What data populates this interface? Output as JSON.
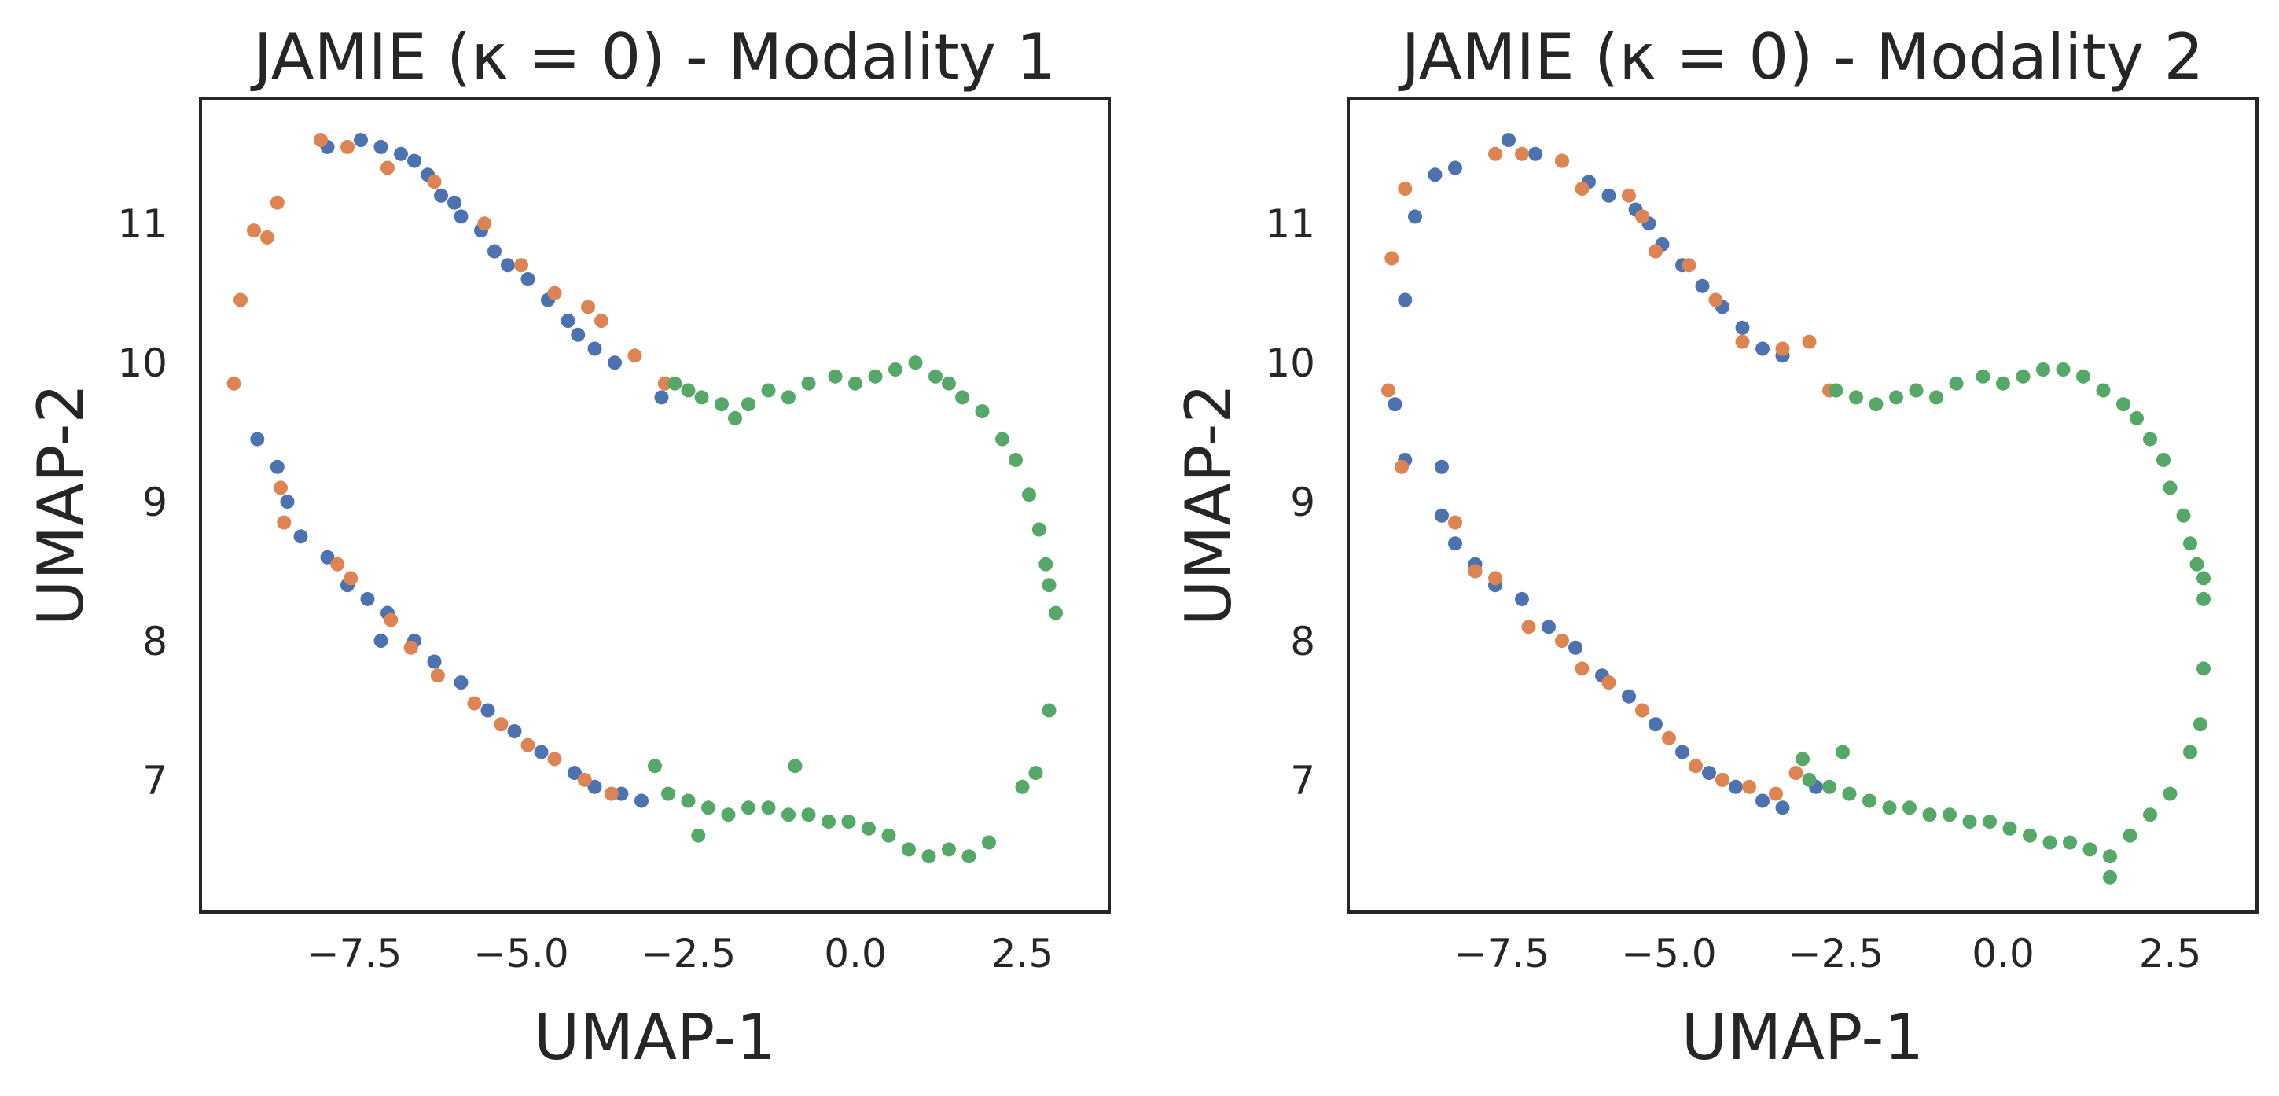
{
  "chart_data": [
    {
      "type": "scatter",
      "title": "JAMIE (κ = 0) - Modality 1",
      "xlabel": "UMAP-1",
      "ylabel": "UMAP-2",
      "xlim": [
        -9.8,
        3.8
      ],
      "ylim": [
        6.05,
        11.9
      ],
      "xticks": [
        -7.5,
        -5.0,
        -2.5,
        0.0,
        2.5
      ],
      "xtick_labels": [
        "−7.5",
        "−5.0",
        "−2.5",
        "0.0",
        "2.5"
      ],
      "yticks": [
        7,
        8,
        9,
        10,
        11
      ],
      "ytick_labels": [
        "7",
        "8",
        "9",
        "10",
        "11"
      ],
      "grid": false,
      "series": [
        {
          "color": "#4c72b0",
          "points": [
            [
              -7.9,
              11.55
            ],
            [
              -7.4,
              11.6
            ],
            [
              -7.1,
              11.55
            ],
            [
              -6.8,
              11.5
            ],
            [
              -6.6,
              11.45
            ],
            [
              -6.4,
              11.35
            ],
            [
              -6.2,
              11.2
            ],
            [
              -6.0,
              11.15
            ],
            [
              -5.9,
              11.05
            ],
            [
              -5.6,
              10.95
            ],
            [
              -5.4,
              10.8
            ],
            [
              -5.2,
              10.7
            ],
            [
              -4.9,
              10.6
            ],
            [
              -4.6,
              10.45
            ],
            [
              -4.3,
              10.3
            ],
            [
              -4.15,
              10.2
            ],
            [
              -3.9,
              10.1
            ],
            [
              -3.6,
              10.0
            ],
            [
              -2.9,
              9.75
            ],
            [
              -8.95,
              9.45
            ],
            [
              -8.65,
              9.25
            ],
            [
              -8.5,
              9.0
            ],
            [
              -8.3,
              8.75
            ],
            [
              -7.9,
              8.6
            ],
            [
              -7.6,
              8.4
            ],
            [
              -7.3,
              8.3
            ],
            [
              -7.0,
              8.2
            ],
            [
              -6.6,
              8.0
            ],
            [
              -6.3,
              7.85
            ],
            [
              -5.9,
              7.7
            ],
            [
              -5.5,
              7.5
            ],
            [
              -5.1,
              7.35
            ],
            [
              -4.7,
              7.2
            ],
            [
              -4.2,
              7.05
            ],
            [
              -3.9,
              6.95
            ],
            [
              -3.5,
              6.9
            ],
            [
              -3.2,
              6.85
            ],
            [
              -7.1,
              8.0
            ]
          ]
        },
        {
          "color": "#dd8452",
          "points": [
            [
              -9.3,
              9.85
            ],
            [
              -9.2,
              10.45
            ],
            [
              -9.0,
              10.95
            ],
            [
              -8.8,
              10.9
            ],
            [
              -8.65,
              11.15
            ],
            [
              -8.0,
              11.6
            ],
            [
              -7.6,
              11.55
            ],
            [
              -7.0,
              11.4
            ],
            [
              -6.3,
              11.3
            ],
            [
              -5.55,
              11.0
            ],
            [
              -5.0,
              10.7
            ],
            [
              -4.5,
              10.5
            ],
            [
              -4.0,
              10.4
            ],
            [
              -3.8,
              10.3
            ],
            [
              -3.3,
              10.05
            ],
            [
              -2.85,
              9.85
            ],
            [
              -8.6,
              9.1
            ],
            [
              -8.55,
              8.85
            ],
            [
              -7.75,
              8.55
            ],
            [
              -7.55,
              8.45
            ],
            [
              -6.95,
              8.15
            ],
            [
              -6.65,
              7.95
            ],
            [
              -6.25,
              7.75
            ],
            [
              -5.7,
              7.55
            ],
            [
              -5.3,
              7.4
            ],
            [
              -4.9,
              7.25
            ],
            [
              -4.5,
              7.15
            ],
            [
              -4.05,
              7.0
            ],
            [
              -3.65,
              6.9
            ]
          ]
        },
        {
          "color": "#55a868",
          "points": [
            [
              -2.7,
              9.85
            ],
            [
              -2.5,
              9.8
            ],
            [
              -2.3,
              9.75
            ],
            [
              -2.0,
              9.7
            ],
            [
              -1.8,
              9.6
            ],
            [
              -1.6,
              9.7
            ],
            [
              -1.3,
              9.8
            ],
            [
              -1.0,
              9.75
            ],
            [
              -0.7,
              9.85
            ],
            [
              -0.3,
              9.9
            ],
            [
              0.0,
              9.85
            ],
            [
              0.3,
              9.9
            ],
            [
              0.6,
              9.95
            ],
            [
              0.9,
              10.0
            ],
            [
              1.2,
              9.9
            ],
            [
              1.4,
              9.85
            ],
            [
              1.6,
              9.75
            ],
            [
              1.9,
              9.65
            ],
            [
              2.2,
              9.45
            ],
            [
              2.4,
              9.3
            ],
            [
              2.6,
              9.05
            ],
            [
              2.75,
              8.8
            ],
            [
              2.85,
              8.55
            ],
            [
              2.9,
              8.4
            ],
            [
              3.0,
              8.2
            ],
            [
              2.9,
              7.5
            ],
            [
              2.7,
              7.05
            ],
            [
              2.5,
              6.95
            ],
            [
              2.0,
              6.55
            ],
            [
              1.7,
              6.45
            ],
            [
              1.4,
              6.5
            ],
            [
              1.1,
              6.45
            ],
            [
              0.8,
              6.5
            ],
            [
              0.5,
              6.6
            ],
            [
              0.2,
              6.65
            ],
            [
              -0.1,
              6.7
            ],
            [
              -0.4,
              6.7
            ],
            [
              -0.7,
              6.75
            ],
            [
              -1.0,
              6.75
            ],
            [
              -1.3,
              6.8
            ],
            [
              -1.6,
              6.8
            ],
            [
              -1.9,
              6.75
            ],
            [
              -2.2,
              6.8
            ],
            [
              -2.5,
              6.85
            ],
            [
              -2.8,
              6.9
            ],
            [
              -3.0,
              7.1
            ],
            [
              -2.35,
              6.6
            ],
            [
              -0.9,
              7.1
            ]
          ]
        }
      ]
    },
    {
      "type": "scatter",
      "title": "JAMIE (κ = 0) - Modality 2",
      "xlabel": "UMAP-1",
      "ylabel": "UMAP-2",
      "xlim": [
        -9.8,
        3.8
      ],
      "ylim": [
        6.05,
        11.9
      ],
      "xticks": [
        -7.5,
        -5.0,
        -2.5,
        0.0,
        2.5
      ],
      "xtick_labels": [
        "−7.5",
        "−5.0",
        "−2.5",
        "0.0",
        "2.5"
      ],
      "yticks": [
        7,
        8,
        9,
        10,
        11
      ],
      "ytick_labels": [
        "7",
        "8",
        "9",
        "10",
        "11"
      ],
      "grid": false,
      "series": [
        {
          "color": "#4c72b0",
          "points": [
            [
              -8.5,
              11.35
            ],
            [
              -8.2,
              11.4
            ],
            [
              -7.4,
              11.6
            ],
            [
              -7.0,
              11.5
            ],
            [
              -6.6,
              11.45
            ],
            [
              -6.2,
              11.3
            ],
            [
              -5.9,
              11.2
            ],
            [
              -5.5,
              11.1
            ],
            [
              -5.3,
              11.0
            ],
            [
              -5.1,
              10.85
            ],
            [
              -4.8,
              10.7
            ],
            [
              -4.5,
              10.55
            ],
            [
              -4.2,
              10.4
            ],
            [
              -3.9,
              10.25
            ],
            [
              -3.6,
              10.1
            ],
            [
              -3.3,
              10.05
            ],
            [
              -9.1,
              9.7
            ],
            [
              -8.95,
              10.45
            ],
            [
              -8.8,
              11.05
            ],
            [
              -8.95,
              9.3
            ],
            [
              -8.4,
              9.25
            ],
            [
              -8.4,
              8.9
            ],
            [
              -8.2,
              8.7
            ],
            [
              -7.9,
              8.55
            ],
            [
              -7.6,
              8.4
            ],
            [
              -7.2,
              8.3
            ],
            [
              -6.8,
              8.1
            ],
            [
              -6.4,
              7.95
            ],
            [
              -6.0,
              7.75
            ],
            [
              -5.6,
              7.6
            ],
            [
              -5.2,
              7.4
            ],
            [
              -4.8,
              7.2
            ],
            [
              -4.4,
              7.05
            ],
            [
              -4.0,
              6.95
            ],
            [
              -3.6,
              6.85
            ],
            [
              -3.3,
              6.8
            ],
            [
              -2.8,
              6.95
            ]
          ]
        },
        {
          "color": "#dd8452",
          "points": [
            [
              -9.2,
              9.8
            ],
            [
              -9.15,
              10.75
            ],
            [
              -8.95,
              11.25
            ],
            [
              -7.6,
              11.5
            ],
            [
              -7.2,
              11.5
            ],
            [
              -6.6,
              11.45
            ],
            [
              -6.3,
              11.25
            ],
            [
              -5.6,
              11.2
            ],
            [
              -5.4,
              11.05
            ],
            [
              -5.2,
              10.8
            ],
            [
              -4.7,
              10.7
            ],
            [
              -4.3,
              10.45
            ],
            [
              -3.9,
              10.15
            ],
            [
              -3.3,
              10.1
            ],
            [
              -2.9,
              10.15
            ],
            [
              -2.6,
              9.8
            ],
            [
              -9.0,
              9.25
            ],
            [
              -8.2,
              8.85
            ],
            [
              -7.9,
              8.5
            ],
            [
              -7.6,
              8.45
            ],
            [
              -7.1,
              8.1
            ],
            [
              -6.6,
              8.0
            ],
            [
              -6.3,
              7.8
            ],
            [
              -5.9,
              7.7
            ],
            [
              -5.4,
              7.5
            ],
            [
              -5.0,
              7.3
            ],
            [
              -4.6,
              7.1
            ],
            [
              -4.2,
              7.0
            ],
            [
              -3.8,
              6.95
            ],
            [
              -3.4,
              6.9
            ],
            [
              -3.1,
              7.05
            ]
          ]
        },
        {
          "color": "#55a868",
          "points": [
            [
              -2.5,
              9.8
            ],
            [
              -2.2,
              9.75
            ],
            [
              -1.9,
              9.7
            ],
            [
              -1.6,
              9.75
            ],
            [
              -1.3,
              9.8
            ],
            [
              -1.0,
              9.75
            ],
            [
              -0.7,
              9.85
            ],
            [
              -0.3,
              9.9
            ],
            [
              0.0,
              9.85
            ],
            [
              0.3,
              9.9
            ],
            [
              0.6,
              9.95
            ],
            [
              0.9,
              9.95
            ],
            [
              1.2,
              9.9
            ],
            [
              1.5,
              9.8
            ],
            [
              1.8,
              9.7
            ],
            [
              2.0,
              9.6
            ],
            [
              2.2,
              9.45
            ],
            [
              2.4,
              9.3
            ],
            [
              2.5,
              9.1
            ],
            [
              2.7,
              8.9
            ],
            [
              2.8,
              8.7
            ],
            [
              2.9,
              8.55
            ],
            [
              3.0,
              8.45
            ],
            [
              3.0,
              8.3
            ],
            [
              3.0,
              7.8
            ],
            [
              2.95,
              7.4
            ],
            [
              2.8,
              7.2
            ],
            [
              2.5,
              6.9
            ],
            [
              2.2,
              6.75
            ],
            [
              1.9,
              6.6
            ],
            [
              1.6,
              6.45
            ],
            [
              1.3,
              6.5
            ],
            [
              1.0,
              6.55
            ],
            [
              0.7,
              6.55
            ],
            [
              0.4,
              6.6
            ],
            [
              0.1,
              6.65
            ],
            [
              -0.2,
              6.7
            ],
            [
              -0.5,
              6.7
            ],
            [
              -0.8,
              6.75
            ],
            [
              -1.1,
              6.75
            ],
            [
              -1.4,
              6.8
            ],
            [
              -1.7,
              6.8
            ],
            [
              -2.0,
              6.85
            ],
            [
              -2.3,
              6.9
            ],
            [
              -2.6,
              6.95
            ],
            [
              -2.9,
              7.0
            ],
            [
              -3.0,
              7.15
            ],
            [
              -2.4,
              7.2
            ],
            [
              1.6,
              6.3
            ]
          ]
        }
      ]
    }
  ]
}
